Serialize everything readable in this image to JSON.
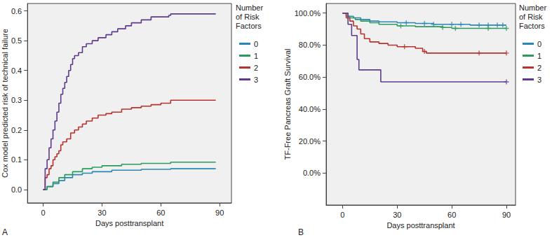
{
  "chart_data": [
    {
      "type": "line",
      "title": "A",
      "legend_title": "Number of Risk Factors",
      "x_label": "Days posttransplant",
      "y_label": "Cox model predicted risk of technical failure",
      "xlim": [
        -8,
        96
      ],
      "xticks": [
        0,
        30,
        60,
        90
      ],
      "ylim": [
        -0.045,
        0.625
      ],
      "yticks": [
        {
          "value": 0,
          "label": "0.0"
        },
        0.1,
        0.2,
        0.3,
        0.4,
        0.5,
        0.6
      ],
      "line_style": "step",
      "grid": false,
      "legend": "right",
      "series": [
        {
          "name": "0",
          "color": "#2a86b5",
          "x": [
            0,
            2,
            5,
            8,
            11,
            15,
            20,
            25,
            35,
            50,
            65,
            88
          ],
          "values": [
            0,
            0.01,
            0.02,
            0.03,
            0.04,
            0.05,
            0.055,
            0.06,
            0.065,
            0.068,
            0.07,
            0.07
          ]
        },
        {
          "name": "1",
          "color": "#2b9a5c",
          "x": [
            0,
            2,
            5,
            8,
            11,
            15,
            20,
            25,
            30,
            40,
            50,
            65,
            88
          ],
          "values": [
            0,
            0.01,
            0.025,
            0.04,
            0.05,
            0.06,
            0.07,
            0.075,
            0.08,
            0.085,
            0.088,
            0.092,
            0.092
          ]
        },
        {
          "name": "2",
          "color": "#b8322c",
          "x": [
            0,
            1,
            2,
            3,
            4,
            5,
            6,
            7,
            8,
            9,
            10,
            12,
            14,
            16,
            18,
            20,
            22,
            25,
            28,
            32,
            35,
            40,
            45,
            50,
            55,
            60,
            65,
            88
          ],
          "values": [
            0,
            0.04,
            0.05,
            0.07,
            0.08,
            0.1,
            0.11,
            0.12,
            0.13,
            0.15,
            0.16,
            0.17,
            0.19,
            0.2,
            0.21,
            0.22,
            0.23,
            0.24,
            0.25,
            0.255,
            0.26,
            0.27,
            0.275,
            0.28,
            0.285,
            0.29,
            0.3,
            0.3
          ]
        },
        {
          "name": "3",
          "color": "#5e3a8c",
          "x": [
            0,
            1,
            2,
            3,
            4,
            5,
            6,
            7,
            8,
            9,
            10,
            11,
            12,
            13,
            14,
            15,
            16,
            18,
            20,
            22,
            25,
            28,
            32,
            35,
            38,
            42,
            45,
            50,
            55,
            64,
            65,
            88
          ],
          "values": [
            0,
            0.07,
            0.1,
            0.14,
            0.17,
            0.2,
            0.23,
            0.26,
            0.29,
            0.32,
            0.34,
            0.36,
            0.38,
            0.4,
            0.42,
            0.44,
            0.45,
            0.46,
            0.48,
            0.49,
            0.5,
            0.51,
            0.52,
            0.53,
            0.54,
            0.55,
            0.56,
            0.57,
            0.58,
            0.585,
            0.59,
            0.59
          ]
        }
      ]
    },
    {
      "type": "line",
      "title": "B",
      "legend_title": "Number of Risk Factors",
      "x_label": "Days posttransplant",
      "y_label": "TF-Free Pancreas Graft Survival",
      "xlim": [
        -9,
        95
      ],
      "xticks": [
        0,
        30,
        60,
        90
      ],
      "ylim": [
        -20,
        106
      ],
      "yticks": [
        {
          "value": 0,
          "label": "0.0%"
        },
        {
          "value": 20,
          "label": "20.0%"
        },
        {
          "value": 40,
          "label": "40.0%"
        },
        {
          "value": 60,
          "label": "60.0%"
        },
        {
          "value": 80,
          "label": "80.0%"
        },
        {
          "value": 100,
          "label": "100.0%"
        }
      ],
      "line_style": "step",
      "marker": "plus",
      "grid": false,
      "legend": "right",
      "series": [
        {
          "name": "0",
          "color": "#2a86b5",
          "x": [
            0,
            3,
            6,
            10,
            15,
            20,
            30,
            40,
            50,
            70,
            90
          ],
          "values": [
            100,
            98,
            97,
            96,
            95,
            94.5,
            94,
            93.5,
            93,
            92.5,
            92.5
          ],
          "censored": [
            [
              35,
              94
            ],
            [
              45,
              93.5
            ],
            [
              50,
              93
            ],
            [
              60,
              93
            ],
            [
              65,
              93
            ],
            [
              75,
              92.5
            ],
            [
              80,
              92.5
            ],
            [
              85,
              92.5
            ],
            [
              88,
              92.5
            ]
          ]
        },
        {
          "name": "1",
          "color": "#2b9a5c",
          "x": [
            0,
            2,
            4,
            7,
            10,
            15,
            20,
            30,
            40,
            55,
            60,
            90
          ],
          "values": [
            100,
            98,
            97,
            96,
            95,
            94,
            93,
            92,
            91.5,
            91,
            90.5,
            90.5
          ],
          "censored": [
            [
              32,
              92
            ],
            [
              55,
              91
            ],
            [
              62,
              90.5
            ],
            [
              80,
              90.5
            ],
            [
              90,
              90.5
            ]
          ]
        },
        {
          "name": "2",
          "color": "#b8322c",
          "x": [
            0,
            2,
            4,
            6,
            8,
            10,
            12,
            15,
            20,
            25,
            30,
            40,
            44,
            46,
            90
          ],
          "values": [
            100,
            97,
            95,
            92,
            90,
            87,
            84,
            82,
            81,
            80,
            79,
            78,
            76,
            75,
            75
          ],
          "censored": [
            [
              34,
              79
            ],
            [
              45,
              76
            ],
            [
              75,
              75
            ],
            [
              90,
              75
            ]
          ]
        },
        {
          "name": "3",
          "color": "#5e3a8c",
          "x": [
            0,
            3,
            5,
            8,
            9,
            21,
            90
          ],
          "values": [
            100,
            93,
            86,
            71,
            64.5,
            57,
            57
          ],
          "censored": [
            [
              90,
              57
            ]
          ]
        }
      ]
    }
  ]
}
